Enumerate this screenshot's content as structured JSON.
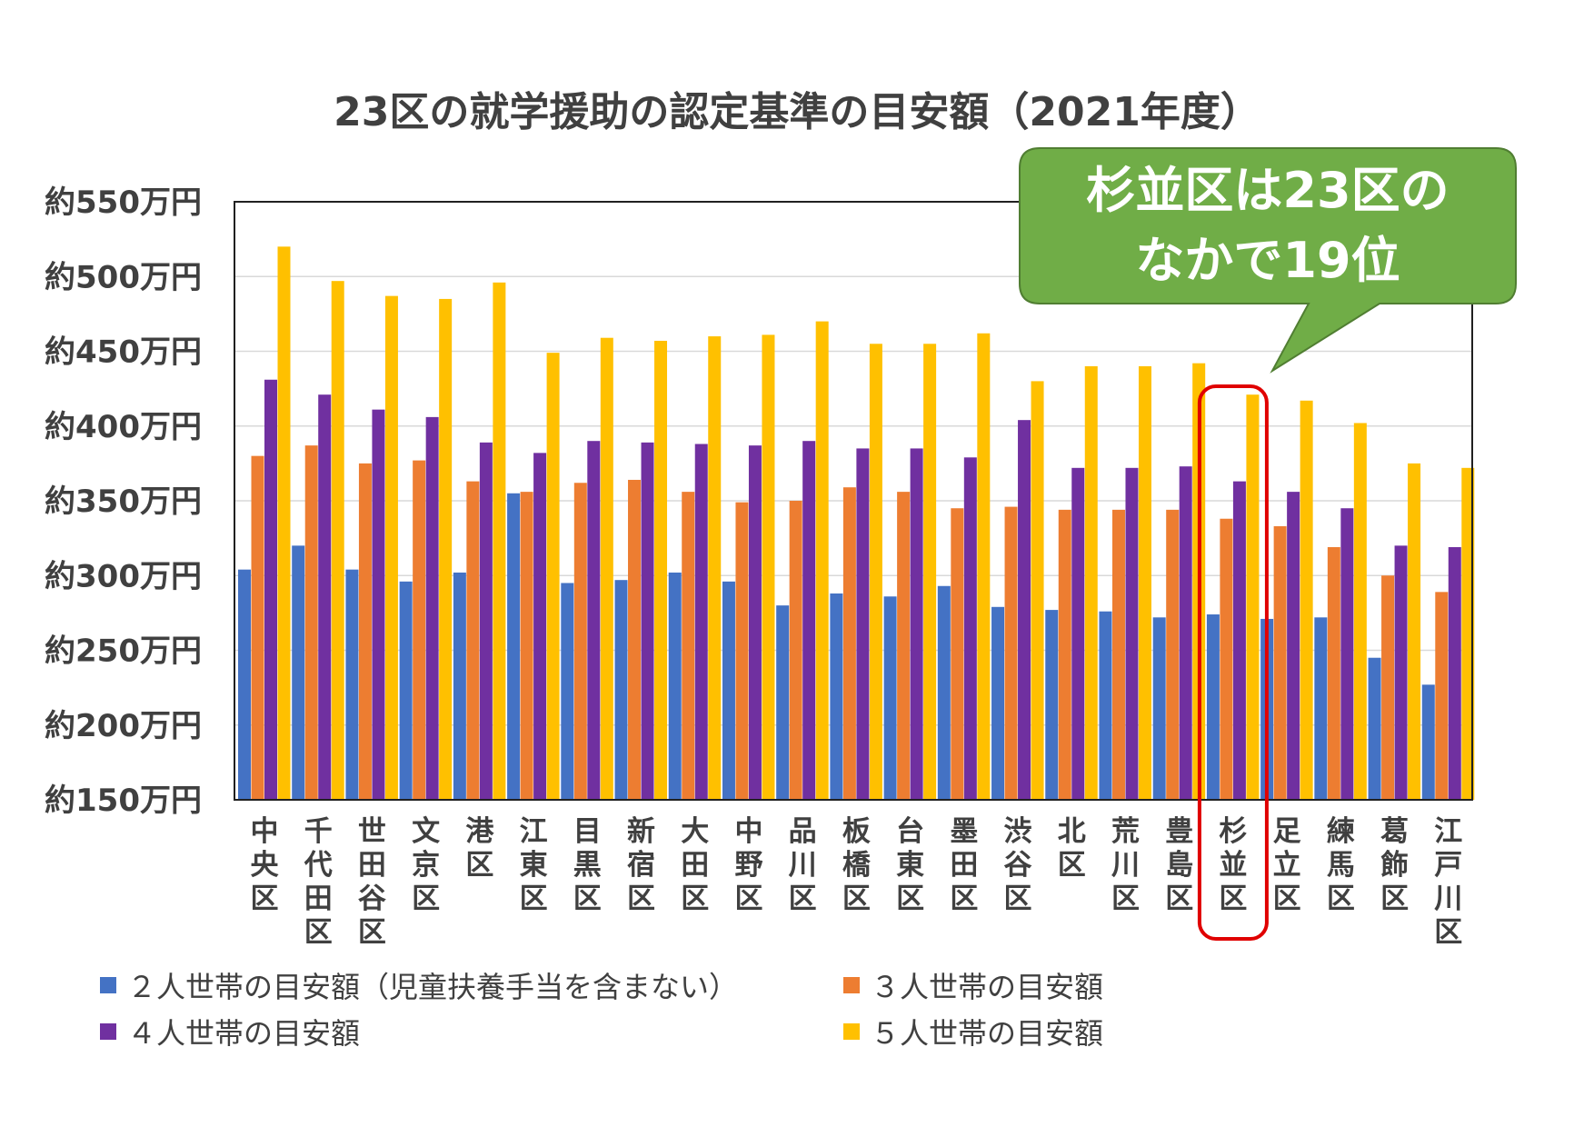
{
  "chart_data": {
    "type": "bar",
    "title": "23区の就学援助の認定基準の目安額（2021年度）",
    "categories": [
      "中央区",
      "千代田区",
      "世田谷区",
      "文京区",
      "港区",
      "江東区",
      "目黒区",
      "新宿区",
      "大田区",
      "中野区",
      "品川区",
      "板橋区",
      "台東区",
      "墨田区",
      "渋谷区",
      "北区",
      "荒川区",
      "豊島区",
      "杉並区",
      "足立区",
      "練馬区",
      "葛飾区",
      "江戸川区"
    ],
    "series": [
      {
        "name": "２人世帯の目安額（児童扶養手当を含まない）",
        "color": "#4472C4",
        "values": [
          304,
          320,
          304,
          296,
          302,
          355,
          295,
          297,
          302,
          296,
          280,
          288,
          286,
          293,
          279,
          277,
          276,
          272,
          274,
          271,
          272,
          245,
          227
        ]
      },
      {
        "name": "３人世帯の目安額",
        "color": "#ED7D31",
        "values": [
          380,
          387,
          375,
          377,
          363,
          356,
          362,
          364,
          356,
          349,
          350,
          359,
          356,
          345,
          346,
          344,
          344,
          344,
          338,
          333,
          319,
          300,
          289
        ]
      },
      {
        "name": "４人世帯の目安額",
        "color": "#7030A0",
        "values": [
          431,
          421,
          411,
          406,
          389,
          382,
          390,
          389,
          388,
          387,
          390,
          385,
          385,
          379,
          404,
          372,
          372,
          373,
          363,
          356,
          345,
          320,
          319
        ]
      },
      {
        "name": "５人世帯の目安額",
        "color": "#FFC000",
        "values": [
          520,
          497,
          487,
          485,
          496,
          449,
          459,
          457,
          460,
          461,
          470,
          455,
          455,
          462,
          430,
          440,
          440,
          442,
          421,
          417,
          402,
          375,
          372
        ]
      }
    ],
    "y_ticks": [
      "約150万円",
      "約200万円",
      "約250万円",
      "約300万円",
      "約350万円",
      "約400万円",
      "約450万円",
      "約500万円",
      "約550万円"
    ],
    "ylim": [
      150,
      550
    ],
    "grid": true,
    "legend_position": "bottom",
    "highlight_category": "杉並区",
    "highlight_color": "#E00000"
  },
  "callout": {
    "line1": "杉並区は23区の",
    "line2": "なかで19位",
    "fill": "#70AD47"
  }
}
